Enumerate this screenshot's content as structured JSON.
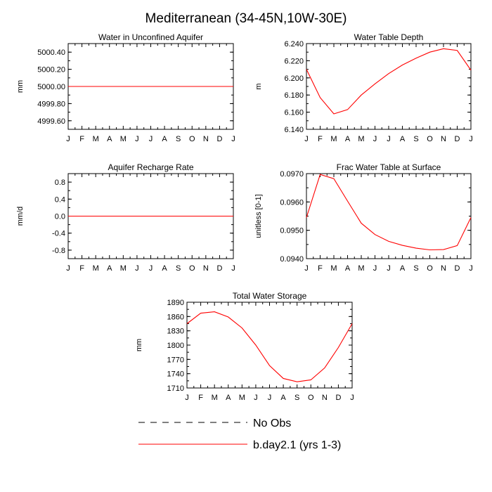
{
  "page_title": "Mediterranean (34-45N,10W-30E)",
  "legend": {
    "obs_label": "No Obs",
    "model_label": "b.day2.1 (yrs 1-3)",
    "obs_color": "#000000",
    "model_color": "#ff0000"
  },
  "chart_data": [
    {
      "type": "line",
      "title": "Water in Unconfined Aquifer",
      "ylabel": "mm",
      "xlabel": "",
      "categories": [
        "J",
        "F",
        "M",
        "A",
        "M",
        "J",
        "J",
        "A",
        "S",
        "O",
        "N",
        "D",
        "J"
      ],
      "ylim": [
        4999.5,
        5000.5
      ],
      "yticks": [
        4999.6,
        4999.8,
        5000.0,
        5000.2,
        5000.4
      ],
      "ytick_labels": [
        "4999.60",
        "4999.80",
        "5000.00",
        "5000.20",
        "5000.40"
      ],
      "series": [
        {
          "name": "b.day2.1 (yrs 1-3)",
          "values": [
            5000,
            5000,
            5000,
            5000,
            5000,
            5000,
            5000,
            5000,
            5000,
            5000,
            5000,
            5000,
            5000
          ]
        }
      ]
    },
    {
      "type": "line",
      "title": "Water Table Depth",
      "ylabel": "m",
      "xlabel": "",
      "categories": [
        "J",
        "F",
        "M",
        "A",
        "M",
        "J",
        "J",
        "A",
        "S",
        "O",
        "N",
        "D",
        "J"
      ],
      "ylim": [
        6.14,
        6.24
      ],
      "yticks": [
        6.14,
        6.16,
        6.18,
        6.2,
        6.22,
        6.24
      ],
      "ytick_labels": [
        "6.140",
        "6.160",
        "6.180",
        "6.200",
        "6.220",
        "6.240"
      ],
      "series": [
        {
          "name": "b.day2.1 (yrs 1-3)",
          "values": [
            6.21,
            6.177,
            6.158,
            6.163,
            6.18,
            6.193,
            6.205,
            6.215,
            6.223,
            6.23,
            6.234,
            6.232,
            6.209
          ]
        }
      ]
    },
    {
      "type": "line",
      "title": "Aquifer Recharge Rate",
      "ylabel": "mm/d",
      "xlabel": "",
      "categories": [
        "J",
        "F",
        "M",
        "A",
        "M",
        "J",
        "J",
        "A",
        "S",
        "O",
        "N",
        "D",
        "J"
      ],
      "ylim": [
        -1.0,
        1.0
      ],
      "yticks": [
        -0.8,
        -0.4,
        0.0,
        0.4,
        0.8
      ],
      "ytick_labels": [
        "-0.8",
        "-0.4",
        "0.0",
        "0.4",
        "0.8"
      ],
      "series": [
        {
          "name": "b.day2.1 (yrs 1-3)",
          "values": [
            0,
            0,
            0,
            0,
            0,
            0,
            0,
            0,
            0,
            0,
            0,
            0,
            0
          ]
        }
      ]
    },
    {
      "type": "line",
      "title": "Frac Water Table at Surface",
      "ylabel": "unitless [0-1]",
      "xlabel": "",
      "categories": [
        "J",
        "F",
        "M",
        "A",
        "M",
        "J",
        "J",
        "A",
        "S",
        "O",
        "N",
        "D",
        "J"
      ],
      "ylim": [
        0.094,
        0.097
      ],
      "yticks": [
        0.094,
        0.095,
        0.096,
        0.097
      ],
      "ytick_labels": [
        "0.0940",
        "0.0950",
        "0.0960",
        "0.0970"
      ],
      "series": [
        {
          "name": "b.day2.1 (yrs 1-3)",
          "values": [
            0.09545,
            0.09697,
            0.09682,
            0.09603,
            0.09525,
            0.09485,
            0.09461,
            0.09447,
            0.09437,
            0.09431,
            0.09432,
            0.09446,
            0.09545
          ]
        }
      ]
    },
    {
      "type": "line",
      "title": "Total Water Storage",
      "ylabel": "mm",
      "xlabel": "",
      "categories": [
        "J",
        "F",
        "M",
        "A",
        "M",
        "J",
        "J",
        "A",
        "S",
        "O",
        "N",
        "D",
        "J"
      ],
      "ylim": [
        1710,
        1890
      ],
      "yticks": [
        1710,
        1740,
        1770,
        1800,
        1830,
        1860,
        1890
      ],
      "ytick_labels": [
        "1710",
        "1740",
        "1770",
        "1800",
        "1830",
        "1860",
        "1890"
      ],
      "series": [
        {
          "name": "b.day2.1 (yrs 1-3)",
          "values": [
            1845,
            1867,
            1870,
            1859,
            1836,
            1800,
            1757,
            1730,
            1723,
            1727,
            1752,
            1795,
            1845
          ]
        }
      ]
    }
  ]
}
